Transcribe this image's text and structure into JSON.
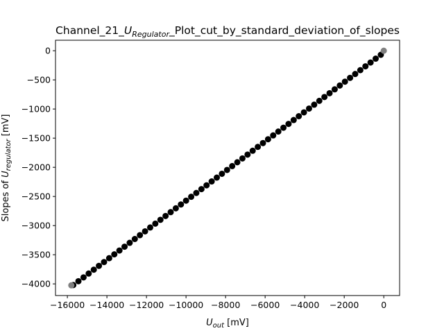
{
  "chart_data": {
    "type": "scatter",
    "title": {
      "prefix": "Channel_21_",
      "symbol": "U",
      "symbol_sub": "Regulator",
      "suffix": "_Plot_cut_by_standard_deviation_of_slopes"
    },
    "xlabel": {
      "symbol": "U",
      "sub": "out",
      "unit": " [mV]"
    },
    "ylabel": {
      "prefix": "Slopes of ",
      "symbol": "U",
      "sub": "regulator",
      "unit": " [mV]"
    },
    "xlim": [
      -16600,
      800
    ],
    "ylim": [
      -4200,
      180
    ],
    "xticks": [
      -16000,
      -14000,
      -12000,
      -10000,
      -8000,
      -6000,
      -4000,
      -2000,
      0
    ],
    "xtick_labels": [
      "−16000",
      "−14000",
      "−12000",
      "−10000",
      "−8000",
      "−6000",
      "−4000",
      "−2000",
      "0"
    ],
    "yticks": [
      0,
      -500,
      -1000,
      -1500,
      -2000,
      -2500,
      -3000,
      -3500,
      -4000
    ],
    "ytick_labels": [
      "0",
      "−500",
      "−1000",
      "−1500",
      "−2000",
      "−2500",
      "−3000",
      "−3500",
      "−4000"
    ],
    "grid": false,
    "series": [
      {
        "color": "#000000",
        "x_start": -15700,
        "x_end": -150,
        "count": 61,
        "y_start": -4020,
        "y_end": -70
      },
      {
        "color": "#808080",
        "points": [
          [
            0,
            0
          ],
          [
            -15800,
            -4025
          ]
        ]
      }
    ]
  }
}
